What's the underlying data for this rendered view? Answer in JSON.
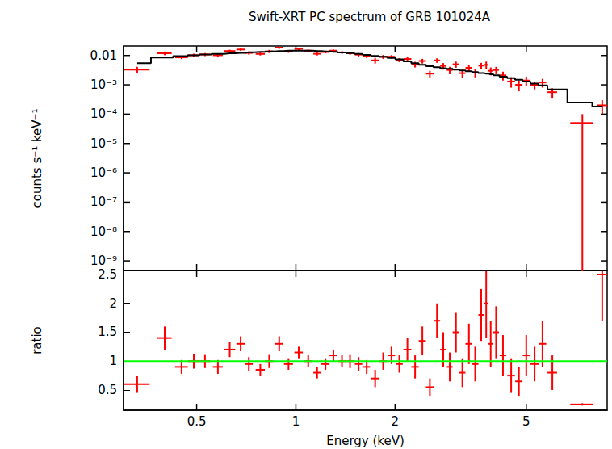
{
  "chart_data": [
    {
      "type": "scatter",
      "title": "Swift-XRT PC spectrum of GRB 101024A",
      "y_label": "counts s⁻¹ keV⁻¹",
      "log": true,
      "tick_labels": "y",
      "xlim": [
        0.3,
        8.8
      ],
      "xticks": [
        0.5,
        1,
        2,
        5
      ],
      "ylim": [
        4.7e-10,
        0.021
      ],
      "yticks": [
        {
          "value": 1e-09,
          "label": "10⁻⁹"
        },
        {
          "value": 1e-08,
          "label": "10⁻⁸"
        },
        {
          "value": 1e-07,
          "label": "10⁻⁷"
        },
        {
          "value": 1e-06,
          "label": "10⁻⁶"
        },
        {
          "value": 1e-05,
          "label": "10⁻⁵"
        },
        {
          "value": 0.0001,
          "label": "10⁻⁴"
        },
        {
          "value": 0.001,
          "label": "10⁻³"
        },
        0.01
      ],
      "x": [
        0.33,
        0.4,
        0.45,
        0.49,
        0.53,
        0.58,
        0.63,
        0.68,
        0.72,
        0.78,
        0.83,
        0.89,
        0.95,
        1.02,
        1.09,
        1.16,
        1.23,
        1.3,
        1.38,
        1.46,
        1.55,
        1.64,
        1.74,
        1.84,
        1.95,
        2.06,
        2.18,
        2.3,
        2.42,
        2.55,
        2.68,
        2.8,
        2.93,
        3.06,
        3.2,
        3.35,
        3.5,
        3.65,
        3.78,
        3.9,
        4.05,
        4.25,
        4.5,
        4.75,
        5,
        5.3,
        5.6,
        6,
        7.4,
        8.5
      ],
      "x_err": [
        0.03,
        0.02,
        0.02,
        0.02,
        0.02,
        0.02,
        0.025,
        0.02,
        0.02,
        0.025,
        0.025,
        0.025,
        0.03,
        0.03,
        0.03,
        0.03,
        0.035,
        0.035,
        0.035,
        0.04,
        0.04,
        0.04,
        0.05,
        0.05,
        0.05,
        0.05,
        0.06,
        0.06,
        0.06,
        0.07,
        0.06,
        0.06,
        0.06,
        0.07,
        0.07,
        0.08,
        0.08,
        0.07,
        0.05,
        0.06,
        0.08,
        0.1,
        0.12,
        0.12,
        0.12,
        0.15,
        0.15,
        0.2,
        0.6,
        0.3
      ],
      "series": [
        {
          "type": "scatter",
          "marker": "cross",
          "color": "#ff0000",
          "values": [
            0.0033,
            0.0119,
            0.0086,
            0.0102,
            0.0108,
            0.0102,
            0.0142,
            0.016,
            0.0122,
            0.0113,
            0.0138,
            0.0185,
            0.0138,
            0.0168,
            0.0145,
            0.0114,
            0.0131,
            0.0146,
            0.0127,
            0.012,
            0.0107,
            0.0095,
            0.0068,
            0.009,
            0.0091,
            0.007,
            0.0076,
            0.005,
            0.0065,
            0.0024,
            0.0068,
            0.0044,
            0.0032,
            0.005,
            0.0025,
            0.0038,
            0.0026,
            0.0045,
            0.0048,
            0.003,
            0.0032,
            0.0021,
            0.0013,
            0.001,
            0.0014,
            0.001,
            0.0012,
            0.00056,
            5e-05,
            0.0002
          ],
          "y_err": [
            0.0008,
            0.0017,
            0.0011,
            0.0013,
            0.0013,
            0.0014,
            0.0015,
            0.0016,
            0.0015,
            0.0013,
            0.0017,
            0.0018,
            0.0015,
            0.0015,
            0.0015,
            0.0014,
            0.0014,
            0.0013,
            0.0013,
            0.0014,
            0.0014,
            0.0013,
            0.0015,
            0.0014,
            0.0012,
            0.0011,
            0.0013,
            0.0011,
            0.0012,
            0.0006,
            0.0012,
            0.0011,
            0.0009,
            0.0012,
            0.0008,
            0.001,
            0.0008,
            0.0011,
            0.0014,
            0.0009,
            0.0009,
            0.0007,
            0.0005,
            0.0004,
            0.0005,
            0.0003,
            0.0004,
            0.0002,
            5e-05,
            0.0001
          ]
        },
        {
          "type": "line",
          "line_style": "step",
          "color": "#000000",
          "values": [
            0.0055,
            0.0085,
            0.0095,
            0.0102,
            0.0108,
            0.0113,
            0.0118,
            0.0123,
            0.0128,
            0.0133,
            0.0138,
            0.0142,
            0.0145,
            0.0146,
            0.0145,
            0.0142,
            0.0138,
            0.0133,
            0.0127,
            0.012,
            0.0113,
            0.0105,
            0.0097,
            0.009,
            0.0083,
            0.0074,
            0.0063,
            0.0055,
            0.0048,
            0.0043,
            0.004,
            0.0037,
            0.0035,
            0.0033,
            0.0031,
            0.0029,
            0.0027,
            0.0025,
            0.0024,
            0.0023,
            0.0021,
            0.0019,
            0.0017,
            0.0015,
            0.0013,
            0.0011,
            0.00095,
            0.0007,
            0.00025,
            0.00018
          ]
        }
      ]
    },
    {
      "type": "scatter",
      "x_label": "Energy (keV)",
      "y_label": "ratio",
      "log": "x",
      "xlim": [
        0.3,
        8.8
      ],
      "xticks": [
        0.5,
        1,
        2,
        5
      ],
      "ylim": [
        0.15,
        2.57
      ],
      "yticks": [
        0.5,
        1,
        1.5,
        2,
        2.5
      ],
      "x": [
        0.33,
        0.4,
        0.45,
        0.49,
        0.53,
        0.58,
        0.63,
        0.68,
        0.72,
        0.78,
        0.83,
        0.89,
        0.95,
        1.02,
        1.09,
        1.16,
        1.23,
        1.3,
        1.38,
        1.46,
        1.55,
        1.64,
        1.74,
        1.84,
        1.95,
        2.06,
        2.18,
        2.3,
        2.42,
        2.55,
        2.68,
        2.8,
        2.93,
        3.06,
        3.2,
        3.35,
        3.5,
        3.65,
        3.78,
        3.9,
        4.05,
        4.25,
        4.5,
        4.75,
        5,
        5.3,
        5.6,
        6,
        7.4,
        8.5
      ],
      "x_err": [
        0.03,
        0.02,
        0.02,
        0.02,
        0.02,
        0.02,
        0.025,
        0.02,
        0.02,
        0.025,
        0.025,
        0.025,
        0.03,
        0.03,
        0.03,
        0.03,
        0.035,
        0.035,
        0.035,
        0.04,
        0.04,
        0.04,
        0.05,
        0.05,
        0.05,
        0.05,
        0.06,
        0.06,
        0.06,
        0.07,
        0.06,
        0.06,
        0.06,
        0.07,
        0.07,
        0.08,
        0.08,
        0.07,
        0.05,
        0.06,
        0.08,
        0.1,
        0.12,
        0.12,
        0.12,
        0.15,
        0.15,
        0.2,
        0.6,
        0.3
      ],
      "series": [
        {
          "type": "scatter",
          "marker": "cross",
          "color": "#ff0000",
          "values": [
            0.6,
            1.4,
            0.9,
            1,
            1,
            0.9,
            1.2,
            1.3,
            0.95,
            0.85,
            1,
            1.3,
            0.95,
            1.15,
            1,
            0.8,
            0.95,
            1.1,
            1,
            1,
            0.95,
            0.9,
            0.7,
            1,
            1.1,
            0.95,
            1.2,
            0.9,
            1.35,
            0.55,
            1.7,
            1.2,
            0.9,
            1.5,
            0.8,
            1.3,
            0.95,
            1.8,
            2,
            1.3,
            1.5,
            1.1,
            0.75,
            0.65,
            1.1,
            0.95,
            1.3,
            0.8,
            0.25,
            2.5
          ],
          "y_err": [
            0.15,
            0.2,
            0.12,
            0.13,
            0.12,
            0.12,
            0.13,
            0.13,
            0.12,
            0.1,
            0.12,
            0.13,
            0.1,
            0.1,
            0.1,
            0.1,
            0.1,
            0.1,
            0.1,
            0.12,
            0.12,
            0.12,
            0.15,
            0.15,
            0.15,
            0.15,
            0.2,
            0.2,
            0.25,
            0.15,
            0.3,
            0.3,
            0.25,
            0.35,
            0.25,
            0.35,
            0.3,
            0.45,
            0.6,
            0.4,
            0.45,
            0.35,
            0.3,
            0.25,
            0.35,
            0.3,
            0.4,
            0.3,
            0.02,
            0.8
          ]
        },
        {
          "type": "line",
          "color": "#00ff00",
          "x": [
            0.3,
            8.8
          ],
          "values": [
            1,
            1
          ]
        }
      ]
    }
  ]
}
